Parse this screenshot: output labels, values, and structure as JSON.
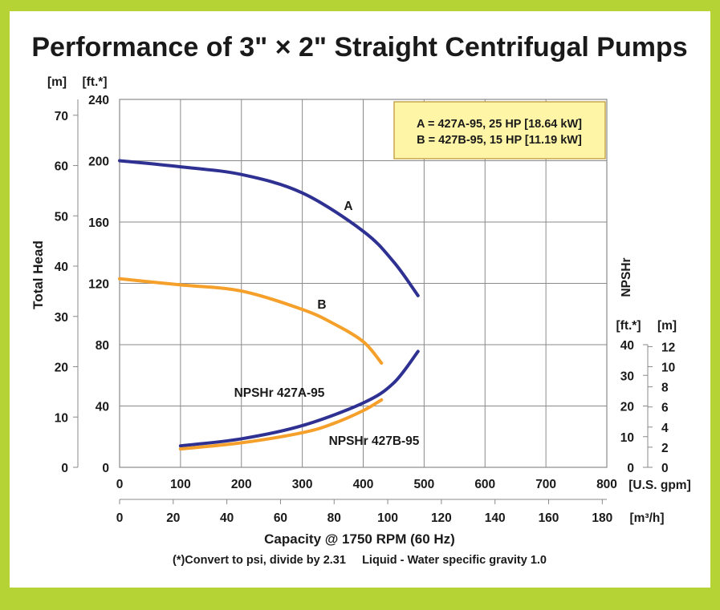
{
  "colors": {
    "frame": "#b5d334",
    "grid": "#8a8a8a",
    "series_a": "#2e3192",
    "series_b": "#f5a02a",
    "legend_bg": "#fff5a6",
    "legend_border": "#c7a54b"
  },
  "chart_data": {
    "type": "line",
    "title": "Performance of 3\" × 2\" Straight Centrifugal Pumps",
    "xlabel": "Capacity @ 1750 RPM (60 Hz)",
    "ylabel": "Total Head",
    "ylabel_right": "NPSHr",
    "x_unit": "[U.S. gpm]",
    "x2_unit": "[m³/h]",
    "y_unit_m": "[m]",
    "y_unit_ft": "[ft.*]",
    "y2_unit_ft": "[ft.*]",
    "y2_unit_m": "[m]",
    "xlim": [
      0,
      800
    ],
    "ylim_ft": [
      0,
      240
    ],
    "grid": true,
    "x_ticks": [
      "0",
      "100",
      "200",
      "300",
      "400",
      "500",
      "600",
      "700",
      "800"
    ],
    "x2_ticks": [
      "0",
      "20",
      "40",
      "60",
      "80",
      "100",
      "120",
      "140",
      "160",
      "180"
    ],
    "y_ticks_ft": [
      "0",
      "40",
      "80",
      "120",
      "160",
      "200",
      "240"
    ],
    "y_ticks_m": [
      "0",
      "10",
      "20",
      "30",
      "40",
      "50",
      "60",
      "70"
    ],
    "y2_ticks_ft": [
      "0",
      "10",
      "20",
      "30",
      "40"
    ],
    "y2_ticks_m": [
      "0",
      "2",
      "4",
      "6",
      "8",
      "10",
      "12"
    ],
    "legend": {
      "placement": "top-right",
      "lines": [
        "A = 427A-95, 25 HP [18.64 kW]",
        "B = 427B-95, 15 HP [11.19 kW]"
      ]
    },
    "series": [
      {
        "name": "A",
        "axis": "head_ft",
        "x": [
          0,
          100,
          200,
          300,
          400,
          450,
          490
        ],
        "y": [
          200,
          196,
          191,
          179,
          154,
          134,
          112
        ]
      },
      {
        "name": "B",
        "axis": "head_ft",
        "x": [
          0,
          100,
          200,
          300,
          350,
          400,
          430
        ],
        "y": [
          123,
          119,
          115,
          103,
          94,
          82,
          68
        ]
      },
      {
        "name": "NPSHr 427A-95",
        "axis": "npsh_ft",
        "x": [
          100,
          200,
          300,
          400,
          450,
          490
        ],
        "y": [
          7,
          9.3,
          13.6,
          21,
          27.5,
          37.8
        ]
      },
      {
        "name": "NPSHr 427B-95",
        "axis": "npsh_ft",
        "x": [
          100,
          200,
          300,
          350,
          400,
          430
        ],
        "y": [
          6,
          8,
          11.3,
          14.2,
          18.5,
          22
        ]
      }
    ],
    "footnote": "(*)Convert to psi, divide by 2.31     Liquid - Water specific gravity 1.0"
  }
}
